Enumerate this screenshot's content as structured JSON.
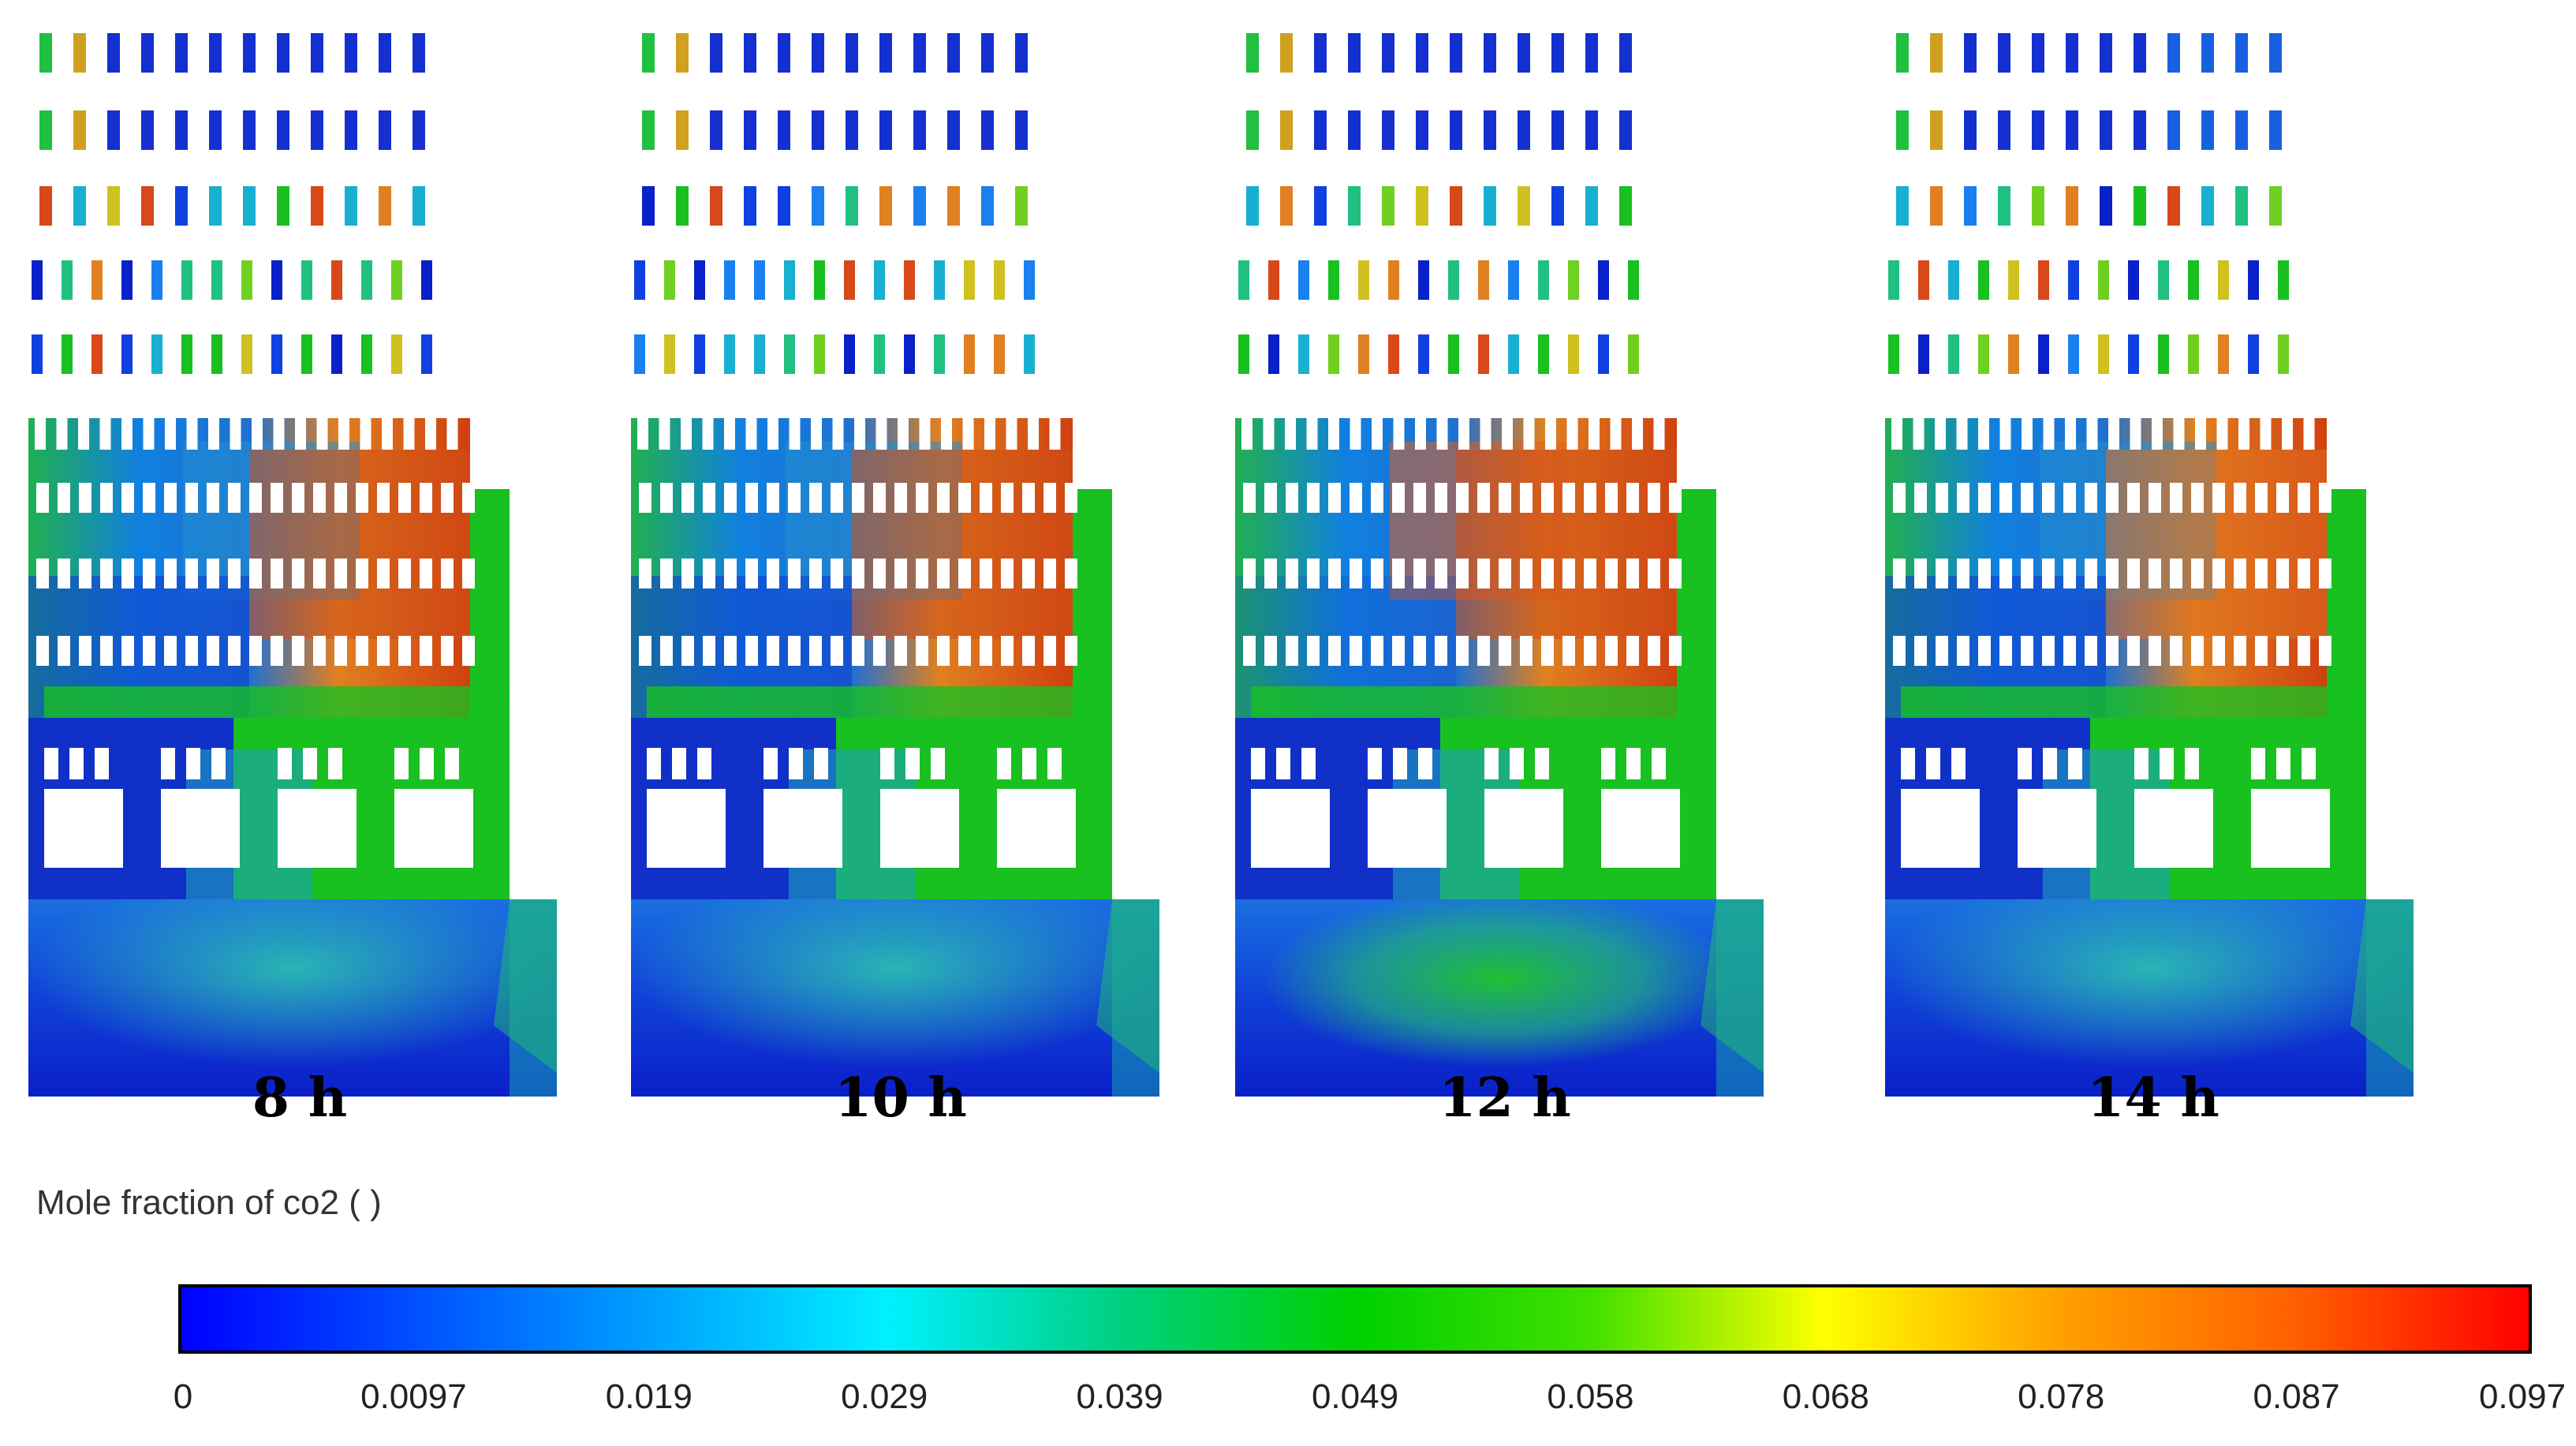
{
  "figure": {
    "panels": [
      {
        "label": "8 h"
      },
      {
        "label": "10 h"
      },
      {
        "label": "12 h"
      },
      {
        "label": "14 h"
      }
    ],
    "legend": {
      "title": "Mole fraction of co2 ( )",
      "ticks": [
        "0",
        "0.0097",
        "0.019",
        "0.029",
        "0.039",
        "0.049",
        "0.058",
        "0.068",
        "0.078",
        "0.087",
        "0.097"
      ],
      "colors": [
        "#0000ff",
        "#0050ff",
        "#00a0ff",
        "#00f0ff",
        "#00d080",
        "#00d000",
        "#40e000",
        "#ffff00",
        "#ffa000",
        "#ff6000",
        "#ff0000"
      ]
    }
  }
}
